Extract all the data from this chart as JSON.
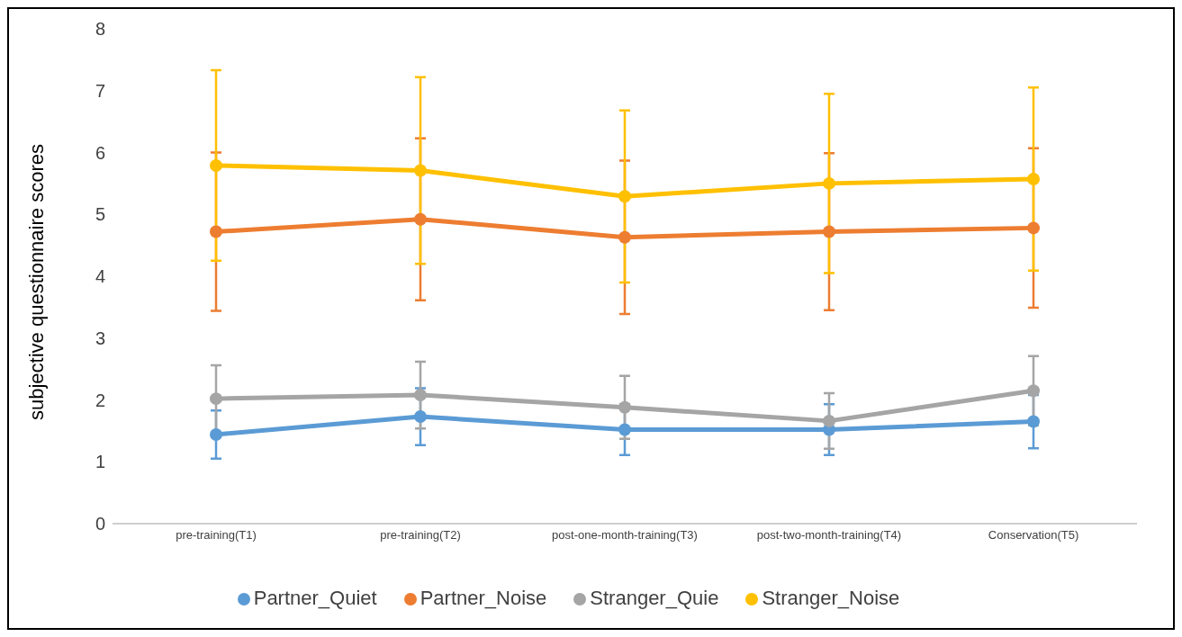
{
  "chart_data": {
    "type": "line",
    "ylabel": "subjective questionnaire scores",
    "categories": [
      "pre-training(T1)",
      "pre-training(T2)",
      "post-one-month-training(T3)",
      "post-two-month-training(T4)",
      "Conservation(T5)"
    ],
    "series": [
      {
        "name": "Partner_Quiet",
        "color": "#5b9bd5",
        "values": [
          1.44,
          1.73,
          1.52,
          1.52,
          1.65
        ],
        "errors": [
          0.39,
          0.46,
          0.41,
          0.41,
          0.43
        ]
      },
      {
        "name": "Partner_Noise",
        "color": "#ed7d31",
        "values": [
          4.72,
          4.92,
          4.63,
          4.72,
          4.78
        ],
        "errors": [
          1.28,
          1.31,
          1.24,
          1.27,
          1.29
        ]
      },
      {
        "name": "Stranger_Quie",
        "color": "#a5a5a5",
        "values": [
          2.02,
          2.08,
          1.88,
          1.66,
          2.15
        ],
        "errors": [
          0.54,
          0.54,
          0.51,
          0.45,
          0.56
        ]
      },
      {
        "name": "Stranger_Noise",
        "color": "#ffc000",
        "values": [
          5.79,
          5.71,
          5.29,
          5.5,
          5.57
        ],
        "errors": [
          1.54,
          1.51,
          1.39,
          1.45,
          1.48
        ]
      }
    ],
    "ylim": [
      0,
      8
    ],
    "yticks": [
      0,
      1,
      2,
      3,
      4,
      5,
      6,
      7,
      8
    ],
    "grid": false,
    "legend": "bottom",
    "marker": "circle",
    "line_style": "solid"
  }
}
